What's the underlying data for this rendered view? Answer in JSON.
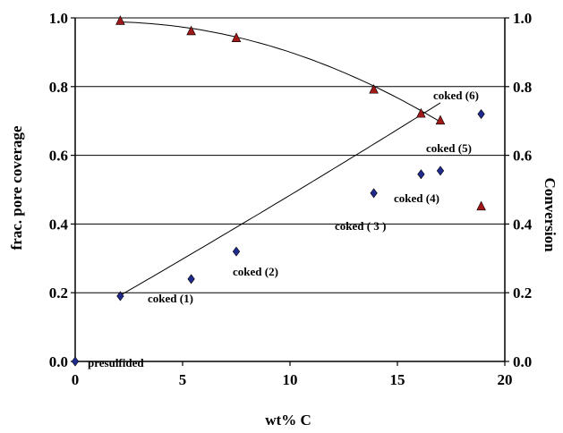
{
  "chart_data": {
    "type": "scatter",
    "xlabel": "wt% C",
    "ylabel": "frac. pore coverage",
    "y2label": "Conversion",
    "xlim": [
      0,
      20
    ],
    "ylim": [
      0,
      1
    ],
    "y2lim": [
      0,
      1
    ],
    "x_ticks": [
      "0",
      "5",
      "10",
      "15",
      "20"
    ],
    "y_ticks": [
      "0.0",
      "0.2",
      "0.4",
      "0.6",
      "0.8",
      "1.0"
    ],
    "y2_ticks": [
      "0.0",
      "0.2",
      "0.4",
      "0.6",
      "0.8",
      "1.0"
    ],
    "grid": "horizontal",
    "colors": {
      "diamond": "#1f2a8c",
      "triangle": "#a01818"
    },
    "series": [
      {
        "marker": "diamond",
        "axis": "left",
        "points": [
          {
            "x": 0,
            "y": 0.0
          },
          {
            "x": 2.1,
            "y": 0.19
          },
          {
            "x": 5.4,
            "y": 0.24
          },
          {
            "x": 7.5,
            "y": 0.32
          },
          {
            "x": 13.9,
            "y": 0.49
          },
          {
            "x": 16.1,
            "y": 0.545
          },
          {
            "x": 17.0,
            "y": 0.555
          },
          {
            "x": 18.9,
            "y": 0.72
          }
        ]
      },
      {
        "marker": "triangle",
        "axis": "right",
        "points": [
          {
            "x": 2.1,
            "y": 0.99
          },
          {
            "x": 5.4,
            "y": 0.96
          },
          {
            "x": 7.5,
            "y": 0.94
          },
          {
            "x": 13.9,
            "y": 0.79
          },
          {
            "x": 16.1,
            "y": 0.72
          },
          {
            "x": 17.0,
            "y": 0.7
          },
          {
            "x": 18.9,
            "y": 0.45
          }
        ]
      }
    ],
    "trendlines": [
      {
        "axis": "left",
        "x_from": 2.1,
        "x_to": 17.0,
        "coef": [
          0.117,
          0.0357,
          0.0001
        ]
      },
      {
        "axis": "right",
        "x_from": 2.1,
        "x_to": 17.0,
        "coef": [
          0.9862,
          0.0034,
          -0.0012
        ]
      }
    ],
    "annotations": [
      "presulfided",
      "coked (1)",
      "coked (2)",
      "coked ( 3 )",
      "coked (4)",
      "coked (5)",
      "coked (6)"
    ]
  }
}
